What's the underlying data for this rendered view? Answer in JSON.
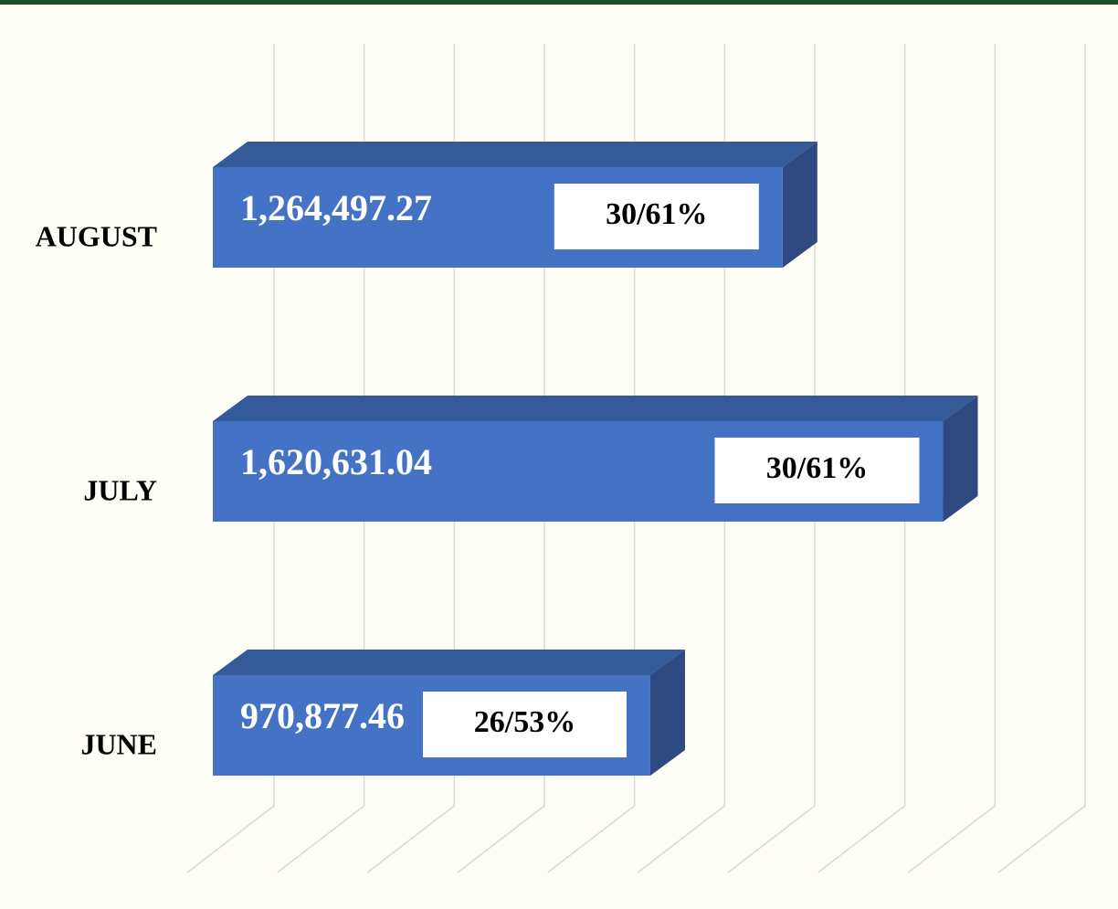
{
  "chart_data": {
    "type": "bar3d_horizontal",
    "categories": [
      "AUGUST",
      "JULY",
      "JUNE"
    ],
    "values": [
      1264497.27,
      1620631.04,
      970877.46
    ],
    "value_labels": [
      "1,264,497.27",
      "1,620,631.04",
      "970,877.46"
    ],
    "annotations": [
      "30/61%",
      "30/61%",
      "26/53%"
    ],
    "color": "#4472c4",
    "xlim": [
      0,
      1800000
    ],
    "xticks": [
      0,
      200000,
      400000,
      600000,
      800000,
      1000000,
      1200000,
      1400000,
      1600000,
      1800000
    ],
    "tick_labels": false,
    "grid": true
  }
}
